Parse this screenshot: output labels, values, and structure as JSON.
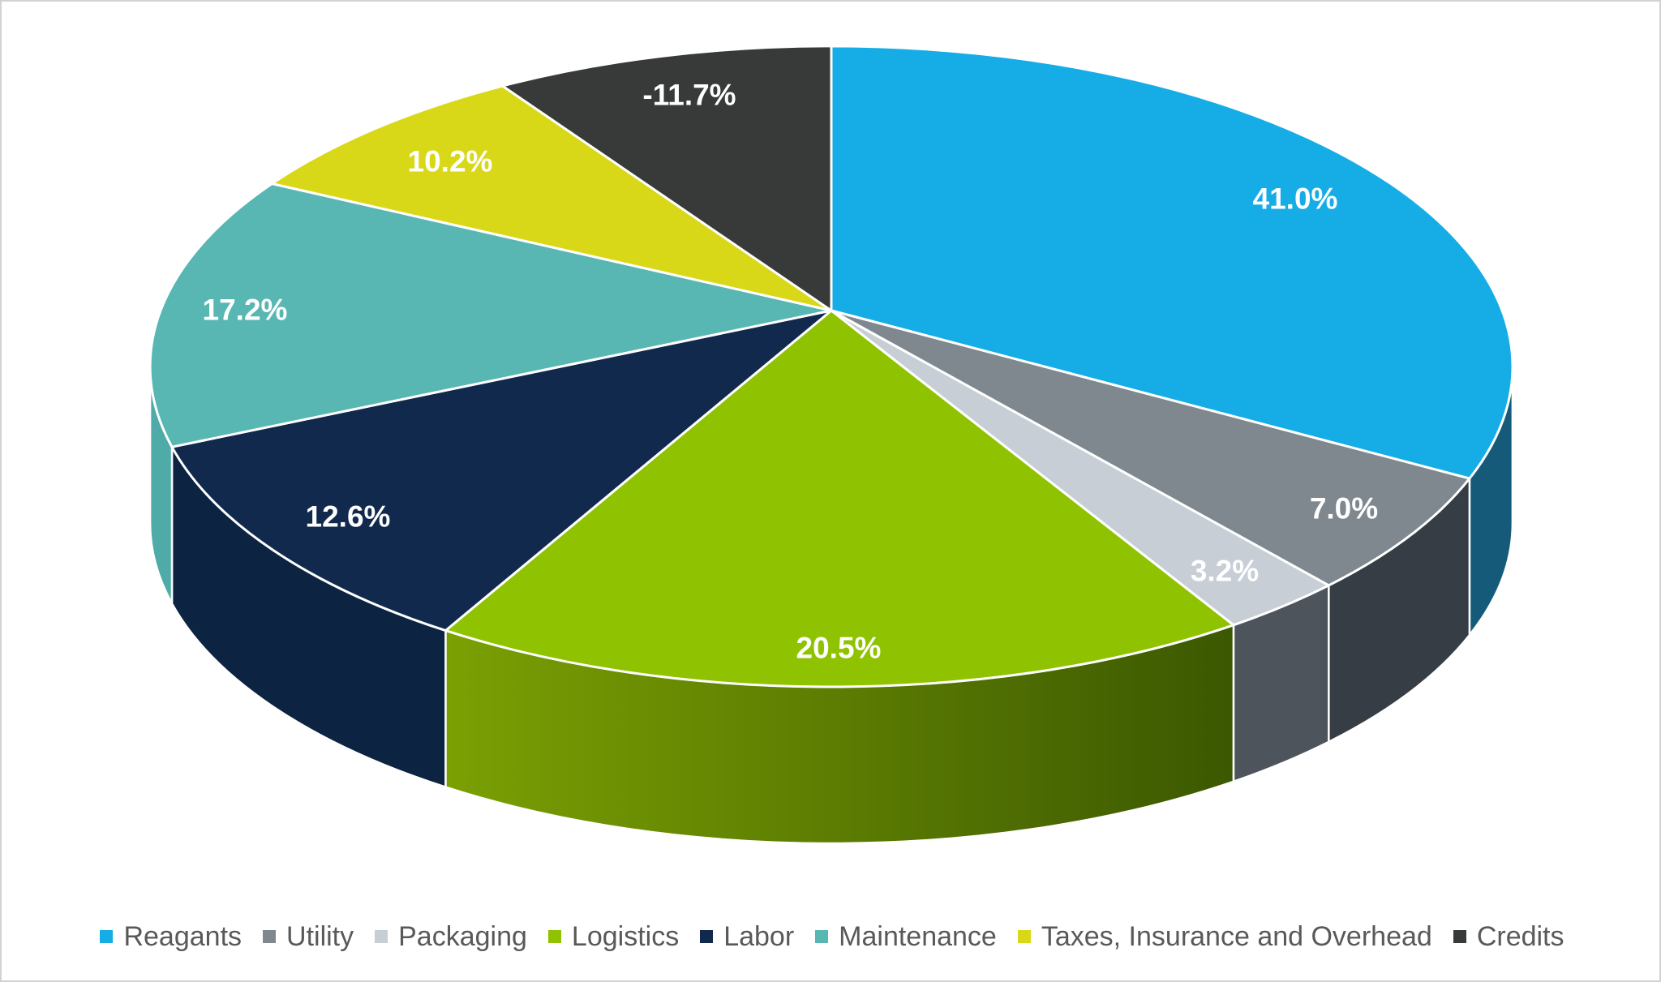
{
  "chart_data": {
    "type": "pie",
    "style": "3d-perspective",
    "title": "",
    "legend_position": "bottom",
    "label_color": "#FFFFFF",
    "legend_text_color": "#595959",
    "background": "#FFFFFF",
    "slices": [
      {
        "label": "Reagants",
        "value": 41.0,
        "display": "41.0%",
        "color": "#16ADE6",
        "side_color": "#155B79"
      },
      {
        "label": "Utility",
        "value": 7.0,
        "display": "7.0%",
        "color": "#7E888E",
        "side_color": "#363D44"
      },
      {
        "label": "Packaging",
        "value": 3.2,
        "display": "3.2%",
        "color": "#C7CED5",
        "side_color": "#4E545B"
      },
      {
        "label": "Logistics",
        "value": 20.5,
        "display": "20.5%",
        "color": "#8FC301",
        "side_color": "#5A7A02",
        "side_color_from": "#7BA003",
        "side_color_to": "#3C5801"
      },
      {
        "label": "Labor",
        "value": 12.6,
        "display": "12.6%",
        "color": "#12294E",
        "side_color": "#0D2342"
      },
      {
        "label": "Maintenance",
        "value": 17.2,
        "display": "17.2%",
        "color": "#59B7B3",
        "side_color": "#4FABA7"
      },
      {
        "label": "Taxes, Insurance and Overhead",
        "value": 10.2,
        "display": "10.2%",
        "color": "#D9D818",
        "side_color": "#A8A80F"
      },
      {
        "label": "Credits",
        "value": -11.7,
        "display": "-11.7%",
        "color": "#383939",
        "side_color": "#2A2B2B"
      }
    ]
  }
}
